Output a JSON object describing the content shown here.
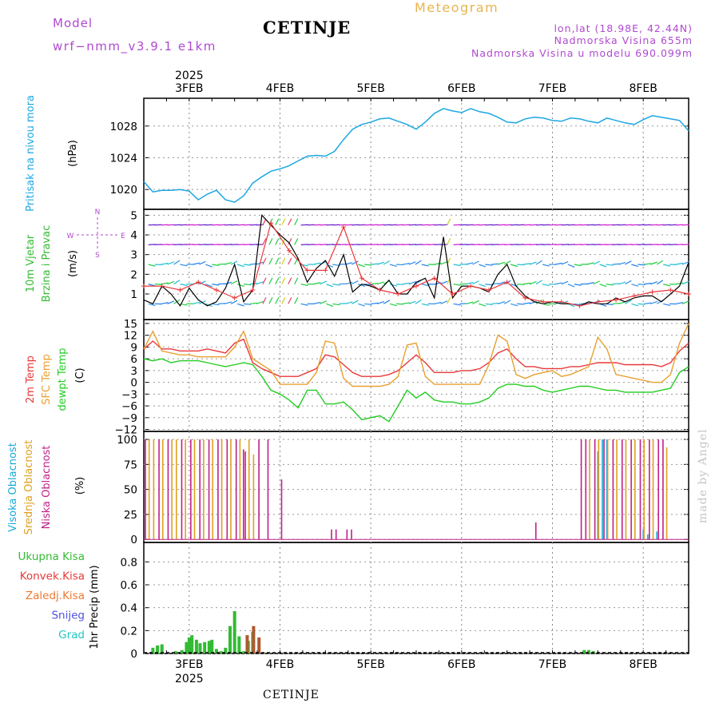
{
  "header": {
    "model_label": "Model",
    "model_name": "wrf−nmm_v3.9.1  e1km",
    "station": "CETINJE",
    "meteogram": "Meteogram",
    "lonlat": "lon,lat (18.98E, 42.44N)",
    "elevation": "Nadmorska Visina 655m",
    "model_elevation": "Nadmorska Visina u modelu 690.099m"
  },
  "footer": {
    "station": "CETINJE",
    "credit": "made by Angel"
  },
  "time_axis": {
    "year": "2025",
    "labels": [
      "3FEB",
      "4FEB",
      "5FEB",
      "6FEB",
      "7FEB",
      "8FEB"
    ]
  },
  "colors": {
    "pressure": "#1da7e5",
    "wind_speed": "#000000",
    "wind_gust": "#e8383a",
    "temp_2m": "#e8383a",
    "temp_sfc": "#e8a030",
    "dewpoint": "#22cc22",
    "cloud_high": "#1aa8d8",
    "cloud_mid": "#e0a020",
    "cloud_low": "#c0208a",
    "precip_total": "#33bb33",
    "precip_conv": "#e83838",
    "precip_freezing": "#f07830",
    "snow": "#5050e0",
    "hail": "#20c8c0"
  },
  "chart_data": [
    {
      "type": "line",
      "name": "pressure",
      "ylabel": [
        "Pritisak na nivou mora",
        "(hPa)"
      ],
      "yticks": [
        1020,
        1024,
        1028
      ],
      "ylim": [
        1017.5,
        1031.5
      ],
      "x": [
        2.5,
        2.6,
        2.7,
        2.8,
        2.9,
        3.0,
        3.1,
        3.2,
        3.3,
        3.4,
        3.5,
        3.6,
        3.7,
        3.8,
        3.9,
        4.0,
        4.1,
        4.2,
        4.3,
        4.4,
        4.5,
        4.6,
        4.7,
        4.8,
        4.9,
        5.0,
        5.1,
        5.2,
        5.3,
        5.4,
        5.5,
        5.6,
        5.7,
        5.8,
        5.9,
        6.0,
        6.1,
        6.2,
        6.3,
        6.4,
        6.5,
        6.6,
        6.7,
        6.8,
        6.9,
        7.0,
        7.1,
        7.2,
        7.3,
        7.4,
        7.5,
        7.6,
        7.7,
        7.8,
        7.9,
        8.0,
        8.1,
        8.2,
        8.3,
        8.4,
        8.5
      ],
      "values": [
        1021.0,
        1019.7,
        1019.9,
        1019.9,
        1020.0,
        1019.8,
        1018.7,
        1019.4,
        1019.9,
        1018.7,
        1018.4,
        1019.2,
        1020.8,
        1021.6,
        1022.3,
        1022.6,
        1023.0,
        1023.6,
        1024.2,
        1024.3,
        1024.2,
        1024.8,
        1026.3,
        1027.6,
        1028.2,
        1028.5,
        1028.9,
        1029.0,
        1028.6,
        1028.2,
        1027.6,
        1028.5,
        1029.6,
        1030.2,
        1029.9,
        1029.7,
        1030.2,
        1029.8,
        1029.6,
        1029.1,
        1028.5,
        1028.4,
        1028.9,
        1029.1,
        1029.0,
        1028.7,
        1028.6,
        1029.0,
        1028.9,
        1028.6,
        1028.4,
        1029.0,
        1028.7,
        1028.4,
        1028.2,
        1028.8,
        1029.3,
        1029.1,
        1028.9,
        1028.7,
        1027.4
      ]
    },
    {
      "type": "line",
      "name": "wind",
      "ylabel": [
        "10m Vjetar",
        "Brzina i Pravac",
        "(m/s)"
      ],
      "compass": [
        "N",
        "S",
        "W",
        "E"
      ],
      "yticks": [
        1,
        2,
        3,
        4,
        5
      ],
      "ylim": [
        -0.3,
        5.3
      ],
      "barb_levels": [
        0.5,
        1.5,
        2.5,
        3.5,
        4.5
      ],
      "series": [
        {
          "name": "speed",
          "x": [
            2.5,
            2.6,
            2.7,
            2.8,
            2.9,
            3.0,
            3.1,
            3.2,
            3.3,
            3.4,
            3.5,
            3.6,
            3.7,
            3.8,
            3.9,
            4.0,
            4.1,
            4.2,
            4.3,
            4.4,
            4.5,
            4.6,
            4.7,
            4.8,
            4.9,
            5.0,
            5.1,
            5.2,
            5.3,
            5.4,
            5.5,
            5.6,
            5.7,
            5.8,
            5.9,
            6.0,
            6.1,
            6.2,
            6.3,
            6.4,
            6.5,
            6.6,
            6.7,
            6.8,
            6.9,
            7.0,
            7.1,
            7.2,
            7.3,
            7.4,
            7.5,
            7.6,
            7.7,
            7.8,
            7.9,
            8.0,
            8.1,
            8.2,
            8.3,
            8.4,
            8.5
          ],
          "values": [
            0.7,
            0.5,
            1.4,
            1.0,
            0.4,
            1.3,
            0.7,
            0.4,
            0.6,
            1.3,
            2.5,
            0.6,
            1.2,
            5.0,
            4.5,
            4.0,
            3.6,
            2.8,
            1.6,
            2.3,
            2.7,
            1.9,
            3.0,
            1.1,
            1.5,
            1.4,
            1.2,
            1.7,
            1.0,
            1.0,
            1.6,
            1.8,
            0.8,
            3.9,
            0.8,
            1.4,
            1.4,
            1.3,
            1.1,
            2.0,
            2.5,
            1.4,
            0.9,
            0.6,
            0.5,
            0.6,
            0.5,
            0.5,
            0.4,
            0.6,
            0.5,
            0.5,
            0.8,
            0.6,
            0.8,
            0.9,
            0.9,
            0.6,
            1.0,
            1.4,
            2.6
          ]
        },
        {
          "name": "gust",
          "x": [
            2.5,
            2.7,
            2.9,
            3.1,
            3.3,
            3.5,
            3.7,
            3.9,
            4.1,
            4.3,
            4.5,
            4.7,
            4.9,
            5.1,
            5.3,
            5.5,
            5.7,
            5.9,
            6.1,
            6.3,
            6.5,
            6.7,
            6.9,
            7.1,
            7.3,
            7.5,
            7.7,
            7.9,
            8.1,
            8.3,
            8.5
          ],
          "values": [
            1.4,
            1.4,
            1.2,
            1.6,
            1.2,
            0.8,
            1.2,
            4.6,
            3.2,
            2.2,
            2.2,
            4.4,
            1.8,
            1.2,
            1.0,
            1.4,
            1.8,
            1.0,
            1.4,
            1.2,
            1.6,
            0.8,
            0.6,
            0.6,
            0.4,
            0.6,
            0.7,
            0.9,
            1.1,
            1.2,
            1.0
          ]
        }
      ]
    },
    {
      "type": "line",
      "name": "temperature",
      "ylabel": [
        "2m Temp",
        "SFC Temp",
        "dewpt Temp",
        "(C)"
      ],
      "yticks": [
        -12,
        -9,
        -6,
        -3,
        0,
        3,
        6,
        9,
        12,
        15
      ],
      "ylim": [
        -12.5,
        16
      ],
      "x": [
        2.5,
        2.6,
        2.7,
        2.8,
        2.9,
        3.0,
        3.1,
        3.2,
        3.3,
        3.4,
        3.5,
        3.6,
        3.7,
        3.8,
        3.9,
        4.0,
        4.1,
        4.2,
        4.3,
        4.4,
        4.5,
        4.6,
        4.7,
        4.8,
        4.9,
        5.0,
        5.1,
        5.2,
        5.3,
        5.4,
        5.5,
        5.6,
        5.7,
        5.8,
        5.9,
        6.0,
        6.1,
        6.2,
        6.3,
        6.4,
        6.5,
        6.6,
        6.7,
        6.8,
        6.9,
        7.0,
        7.1,
        7.2,
        7.3,
        7.4,
        7.5,
        7.6,
        7.7,
        7.8,
        7.9,
        8.0,
        8.1,
        8.2,
        8.3,
        8.4,
        8.5
      ],
      "series": [
        {
          "name": "2m Temp",
          "values": [
            8.5,
            10.5,
            8.5,
            8.5,
            8.0,
            8.0,
            8.0,
            8.5,
            8.0,
            7.5,
            10.0,
            11.0,
            5.0,
            3.5,
            2.5,
            1.5,
            1.5,
            1.5,
            2.5,
            3.5,
            7.0,
            6.5,
            4.5,
            2.5,
            1.5,
            1.5,
            1.5,
            2.0,
            3.0,
            5.0,
            7.0,
            5.0,
            2.5,
            2.5,
            2.5,
            3.0,
            3.0,
            3.5,
            5.0,
            7.5,
            8.5,
            6.0,
            4.0,
            4.0,
            3.5,
            3.5,
            3.5,
            4.0,
            4.0,
            4.5,
            5.0,
            5.0,
            5.0,
            4.5,
            4.5,
            4.5,
            4.5,
            4.0,
            5.0,
            8.0,
            10.0
          ]
        },
        {
          "name": "SFC Temp",
          "values": [
            8.5,
            13.0,
            8.0,
            7.5,
            7.0,
            7.0,
            6.5,
            6.5,
            6.5,
            6.5,
            9.0,
            13.0,
            6.0,
            4.5,
            3.0,
            -0.5,
            -0.5,
            -0.5,
            -0.5,
            2.5,
            10.5,
            10.0,
            1.0,
            -1.0,
            -1.0,
            -1.0,
            -1.0,
            -0.5,
            1.5,
            9.5,
            10.0,
            1.5,
            -0.5,
            -0.5,
            -0.5,
            -0.5,
            -0.5,
            -0.5,
            4.5,
            12.0,
            10.5,
            2.0,
            1.0,
            2.0,
            2.5,
            3.0,
            1.5,
            2.0,
            3.0,
            4.0,
            11.5,
            8.5,
            2.0,
            1.5,
            1.0,
            0.5,
            0.0,
            0.0,
            2.0,
            10.0,
            15.0
          ]
        },
        {
          "name": "dewpt Temp",
          "values": [
            6.0,
            5.5,
            6.0,
            5.0,
            5.5,
            5.5,
            5.5,
            5.0,
            4.5,
            4.0,
            4.5,
            5.0,
            4.5,
            1.5,
            -2.0,
            -3.0,
            -4.5,
            -6.5,
            -2.0,
            -2.0,
            -5.5,
            -5.5,
            -5.0,
            -7.0,
            -9.5,
            -9.0,
            -8.5,
            -10.0,
            -6.0,
            -2.0,
            -4.0,
            -2.5,
            -4.5,
            -5.0,
            -5.0,
            -5.5,
            -5.5,
            -5.0,
            -4.0,
            -1.5,
            -0.5,
            -0.5,
            -1.0,
            -1.0,
            -2.0,
            -2.5,
            -2.0,
            -1.5,
            -1.0,
            -1.0,
            -1.5,
            -2.0,
            -2.0,
            -2.5,
            -2.5,
            -2.5,
            -2.5,
            -2.0,
            -1.5,
            2.5,
            4.0
          ]
        }
      ]
    },
    {
      "type": "bar",
      "name": "cloud_cover",
      "ylabel": [
        "Visoka Oblacnost",
        "Srednja Oblacnost",
        "Niska Oblacnost",
        "(%)"
      ],
      "yticks": [
        0,
        25,
        50,
        75,
        100
      ],
      "ylim": [
        -3,
        108
      ],
      "series": [
        {
          "name": "Visoka Oblacnost",
          "x": [
            7.5,
            7.55,
            7.6,
            8.0,
            8.05,
            8.15
          ],
          "values": [
            88,
            100,
            100,
            10,
            5,
            8
          ]
        },
        {
          "name": "Srednja Oblacnost",
          "x": [
            2.55,
            2.6,
            2.7,
            2.8,
            2.85,
            2.95,
            3.05,
            3.15,
            3.25,
            3.35,
            3.45,
            3.55,
            3.65,
            3.7,
            7.4,
            7.5,
            7.6,
            7.7,
            7.8,
            7.9,
            8.0,
            8.1,
            8.25
          ],
          "values": [
            100,
            100,
            100,
            100,
            100,
            100,
            100,
            100,
            100,
            100,
            100,
            100,
            100,
            85,
            100,
            100,
            100,
            100,
            100,
            100,
            100,
            100,
            92
          ]
        },
        {
          "name": "Niska Oblacnost",
          "x": [
            2.5,
            2.65,
            2.75,
            2.9,
            3.0,
            3.1,
            3.2,
            3.3,
            3.4,
            3.5,
            3.58,
            3.6,
            3.75,
            3.85,
            4.0,
            4.55,
            4.6,
            4.72,
            4.77,
            6.8,
            7.3,
            7.35,
            7.45,
            7.55,
            7.65,
            7.75,
            7.85,
            7.95,
            8.05,
            8.15,
            8.2
          ],
          "values": [
            100,
            100,
            100,
            100,
            100,
            100,
            100,
            100,
            100,
            100,
            90,
            88,
            100,
            100,
            60,
            10,
            10,
            10,
            10,
            17,
            100,
            100,
            100,
            100,
            100,
            100,
            100,
            100,
            100,
            100,
            100
          ]
        }
      ]
    },
    {
      "type": "bar",
      "name": "precipitation",
      "ylabel": [
        "1hr Precip (mm)"
      ],
      "legend": [
        "Ukupna Kisa",
        "Konvek.Kisa",
        "Zaledj.Kisa",
        "Snijeg",
        "Grad"
      ],
      "yticks": [
        0,
        0.2,
        0.4,
        0.6,
        0.8
      ],
      "ylim": [
        0,
        0.97
      ],
      "series": [
        {
          "name": "Ukupna Kisa",
          "x": [
            2.6,
            2.65,
            2.7,
            2.85,
            2.92,
            2.97,
            3.0,
            3.03,
            3.08,
            3.12,
            3.17,
            3.22,
            3.25,
            3.3,
            3.35,
            3.4,
            3.45,
            3.5,
            3.55,
            3.6,
            3.65,
            3.7,
            7.35,
            7.4,
            7.45
          ],
          "values": [
            0.05,
            0.07,
            0.08,
            0.02,
            0.03,
            0.1,
            0.14,
            0.16,
            0.12,
            0.09,
            0.1,
            0.11,
            0.12,
            0.04,
            0.02,
            0.05,
            0.24,
            0.37,
            0.15,
            0.02,
            0.11,
            0.19,
            0.03,
            0.03,
            0.02
          ]
        },
        {
          "name": "Konvek.Kisa",
          "x": [
            3.63,
            3.7,
            3.76
          ],
          "values": [
            0.16,
            0.24,
            0.14
          ]
        }
      ]
    }
  ]
}
